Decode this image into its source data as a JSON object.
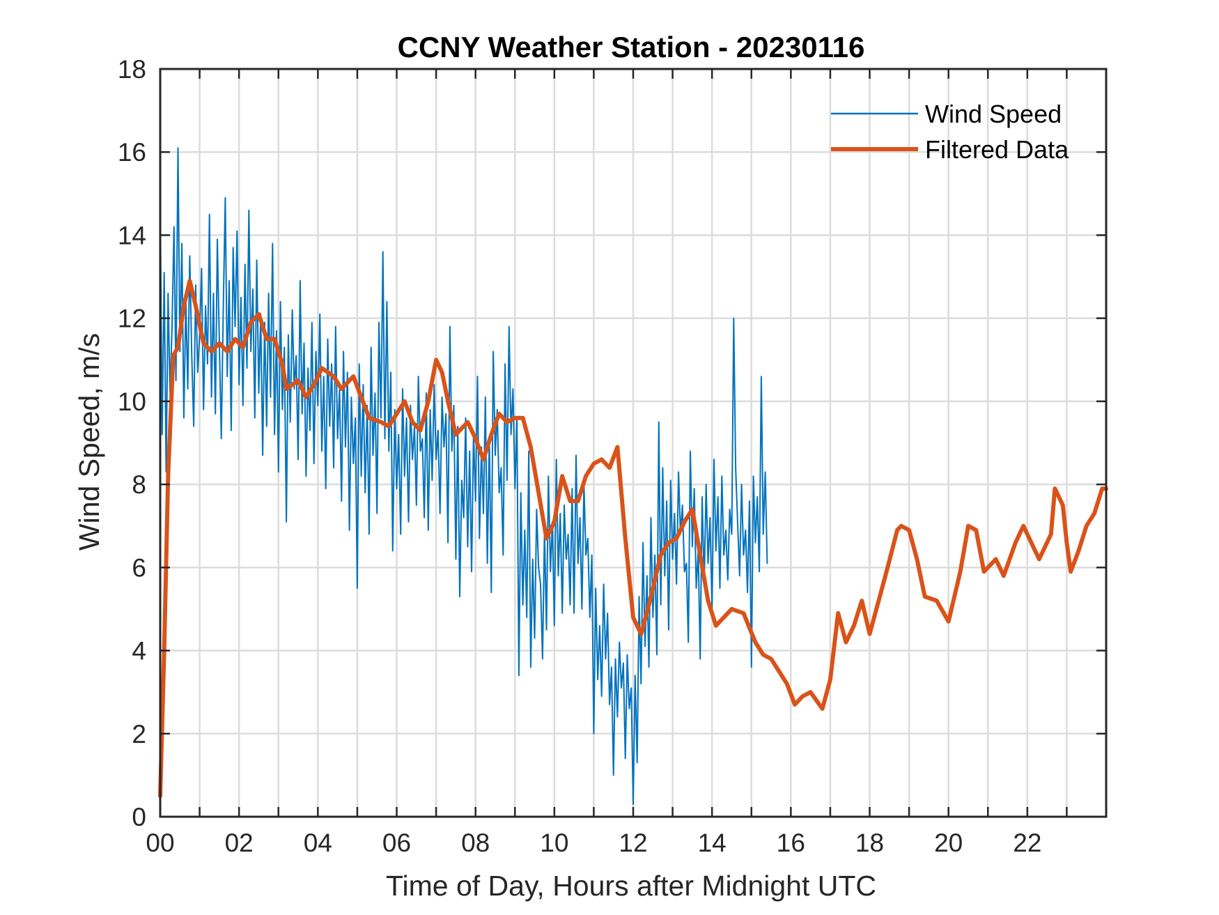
{
  "chart_data": {
    "type": "line",
    "title": "CCNY Weather Station - 20230116",
    "xlabel": "Time of Day, Hours after Midnight UTC",
    "ylabel": "Wind Speed, m/s",
    "xlim": [
      0,
      24
    ],
    "ylim": [
      0,
      18
    ],
    "grid": true,
    "x_minor_grid_step_hours": 1,
    "x_ticks": [
      0,
      2,
      4,
      6,
      8,
      10,
      12,
      14,
      16,
      18,
      20,
      22
    ],
    "x_tick_labels": [
      "00",
      "02",
      "04",
      "06",
      "08",
      "10",
      "12",
      "14",
      "16",
      "18",
      "20",
      "22"
    ],
    "y_ticks": [
      0,
      2,
      4,
      6,
      8,
      10,
      12,
      14,
      16,
      18
    ],
    "y_tick_labels": [
      "0",
      "2",
      "4",
      "6",
      "8",
      "10",
      "12",
      "14",
      "16",
      "18"
    ],
    "legend": {
      "position": "top-right",
      "entries": [
        "Wind Speed",
        "Filtered Data"
      ]
    },
    "series": [
      {
        "name": "Wind Speed",
        "color": "#0072BD",
        "x_step_hours": 0.05,
        "values": [
          14.8,
          9.2,
          13.1,
          8.3,
          12.6,
          10.2,
          11.8,
          14.2,
          10.5,
          16.1,
          11.2,
          13.8,
          9.6,
          12.4,
          10.3,
          13.5,
          11.1,
          9.4,
          12.8,
          10.7,
          11.6,
          13.2,
          9.8,
          12.3,
          10.9,
          14.5,
          10.1,
          12.6,
          9.7,
          13.9,
          11.4,
          9.1,
          12.2,
          14.9,
          10.6,
          12.9,
          9.3,
          13.7,
          11.8,
          14.1,
          10.4,
          12.5,
          9.9,
          13.3,
          10.8,
          14.6,
          11.2,
          12.7,
          9.6,
          13.4,
          10.2,
          12.1,
          8.7,
          11.9,
          9.4,
          12.6,
          10.1,
          13.8,
          9.2,
          11.7,
          8.3,
          12.4,
          9.8,
          11.3,
          7.1,
          11.6,
          9.5,
          12.2,
          10.3,
          11.1,
          8.6,
          12.9,
          9.7,
          11.4,
          8.2,
          10.8,
          9.3,
          11.9,
          8.5,
          11.2,
          9.9,
          12.1,
          8.8,
          10.6,
          7.9,
          11.5,
          9.4,
          10.9,
          8.4,
          11.8,
          9.1,
          10.3,
          7.6,
          11.2,
          8.9,
          10.7,
          6.9,
          10.1,
          8.5,
          9.6,
          5.5,
          10.9,
          8.2,
          10.4,
          7.8,
          9.9,
          6.8,
          11.3,
          8.7,
          10.2,
          7.3,
          11.9,
          9.6,
          13.6,
          9.1,
          12.4,
          8.8,
          10.7,
          6.4,
          9.8,
          7.9,
          9.2,
          6.8,
          10.3,
          8.2,
          9.6,
          7.1,
          9.9,
          8.6,
          9.4,
          7.5,
          10.6,
          8.8,
          9.1,
          7.2,
          10.2,
          6.9,
          9.8,
          8.1,
          10.4,
          8.6,
          9.3,
          7.3,
          10.1,
          8.9,
          9.7,
          6.6,
          11.8,
          8.8,
          9.9,
          6.2,
          9.4,
          5.3,
          8.1,
          7.2,
          9.6,
          6.5,
          8.8,
          5.9,
          9.2,
          7.6,
          10.6,
          6.7,
          8.9,
          7.3,
          10.1,
          6.1,
          9.1,
          5.4,
          11.2,
          8.7,
          9.8,
          7.8,
          8.4,
          6.3,
          10.9,
          8.1,
          11.8,
          9.2,
          10.3,
          7.9,
          9.6,
          3.4,
          7.8,
          5.1,
          6.9,
          4.8,
          8.8,
          3.6,
          6.2,
          4.3,
          7.4,
          6.0,
          5.6,
          3.8,
          6.9,
          4.5,
          8.2,
          5.9,
          7.1,
          4.6,
          8.6,
          5.8,
          7.3,
          4.9,
          7.5,
          6.2,
          6.8,
          5.1,
          7.9,
          4.9,
          8.7,
          6.1,
          7.2,
          5.0,
          8.0,
          6.3,
          6.7,
          4.8,
          6.3,
          2.0,
          5.5,
          3.3,
          4.6,
          2.9,
          5.6,
          3.8,
          4.9,
          2.7,
          3.6,
          1.0,
          3.8,
          2.4,
          4.2,
          3.1,
          3.7,
          1.4,
          3.9,
          2.6,
          3.1,
          0.3,
          3.4,
          1.3,
          5.3,
          3.2,
          6.6,
          4.1,
          5.8,
          3.6,
          7.2,
          4.8,
          6.3,
          3.9,
          9.5,
          5.1,
          8.4,
          5.8,
          7.6,
          4.5,
          8.1,
          6.2,
          7.3,
          5.6,
          8.3,
          6.8,
          7.5,
          5.9,
          6.1,
          4.2,
          8.8,
          6.5,
          7.9,
          5.5,
          6.4,
          3.8,
          7.7,
          5.6,
          8.0,
          6.1,
          7.2,
          5.0,
          8.6,
          6.4,
          7.7,
          5.5,
          8.2,
          6.3,
          6.9,
          5.7,
          7.4,
          6.8,
          12.0,
          8.4,
          7.1,
          5.8,
          8.0,
          6.3,
          6.9,
          5.4,
          7.6,
          3.6,
          8.2,
          6.6,
          7.7,
          5.9,
          10.6,
          6.8,
          8.3,
          6.1
        ]
      },
      {
        "name": "Filtered Data",
        "color": "#D95319",
        "points": [
          [
            0.0,
            0.5
          ],
          [
            0.1,
            4.0
          ],
          [
            0.2,
            8.2
          ],
          [
            0.33,
            11.1
          ],
          [
            0.45,
            11.3
          ],
          [
            0.6,
            12.3
          ],
          [
            0.75,
            12.9
          ],
          [
            0.9,
            12.3
          ],
          [
            1.1,
            11.4
          ],
          [
            1.3,
            11.2
          ],
          [
            1.5,
            11.4
          ],
          [
            1.7,
            11.2
          ],
          [
            1.9,
            11.5
          ],
          [
            2.1,
            11.3
          ],
          [
            2.3,
            11.9
          ],
          [
            2.5,
            12.1
          ],
          [
            2.7,
            11.5
          ],
          [
            2.9,
            11.5
          ],
          [
            3.1,
            10.9
          ],
          [
            3.2,
            10.3
          ],
          [
            3.5,
            10.5
          ],
          [
            3.7,
            10.1
          ],
          [
            3.9,
            10.4
          ],
          [
            4.1,
            10.8
          ],
          [
            4.4,
            10.6
          ],
          [
            4.6,
            10.3
          ],
          [
            4.9,
            10.6
          ],
          [
            5.1,
            10.1
          ],
          [
            5.3,
            9.6
          ],
          [
            5.6,
            9.5
          ],
          [
            5.8,
            9.4
          ],
          [
            6.0,
            9.7
          ],
          [
            6.2,
            10.0
          ],
          [
            6.4,
            9.5
          ],
          [
            6.6,
            9.3
          ],
          [
            6.8,
            10.0
          ],
          [
            7.0,
            11.0
          ],
          [
            7.15,
            10.7
          ],
          [
            7.3,
            10.0
          ],
          [
            7.5,
            9.2
          ],
          [
            7.8,
            9.5
          ],
          [
            8.0,
            9.1
          ],
          [
            8.2,
            8.6
          ],
          [
            8.4,
            9.2
          ],
          [
            8.6,
            9.7
          ],
          [
            8.8,
            9.5
          ],
          [
            9.0,
            9.6
          ],
          [
            9.2,
            9.6
          ],
          [
            9.4,
            8.9
          ],
          [
            9.6,
            7.8
          ],
          [
            9.8,
            6.7
          ],
          [
            10.0,
            7.1
          ],
          [
            10.2,
            8.2
          ],
          [
            10.4,
            7.6
          ],
          [
            10.6,
            7.6
          ],
          [
            10.8,
            8.2
          ],
          [
            11.0,
            8.5
          ],
          [
            11.2,
            8.6
          ],
          [
            11.4,
            8.4
          ],
          [
            11.6,
            8.9
          ],
          [
            11.8,
            6.7
          ],
          [
            12.0,
            4.8
          ],
          [
            12.2,
            4.4
          ],
          [
            12.4,
            5.1
          ],
          [
            12.7,
            6.3
          ],
          [
            12.9,
            6.6
          ],
          [
            13.1,
            6.7
          ],
          [
            13.3,
            7.1
          ],
          [
            13.5,
            7.4
          ],
          [
            13.7,
            6.3
          ],
          [
            13.9,
            5.2
          ],
          [
            14.1,
            4.6
          ],
          [
            14.3,
            4.8
          ],
          [
            14.5,
            5.0
          ],
          [
            14.8,
            4.9
          ],
          [
            15.1,
            4.2
          ],
          [
            15.3,
            3.9
          ],
          [
            15.5,
            3.8
          ],
          [
            15.7,
            3.5
          ],
          [
            15.9,
            3.2
          ],
          [
            16.1,
            2.7
          ],
          [
            16.3,
            2.9
          ],
          [
            16.5,
            3.0
          ],
          [
            16.8,
            2.6
          ],
          [
            17.0,
            3.3
          ],
          [
            17.2,
            4.9
          ],
          [
            17.4,
            4.2
          ],
          [
            17.6,
            4.6
          ],
          [
            17.8,
            5.2
          ],
          [
            18.0,
            4.4
          ],
          [
            18.2,
            5.1
          ],
          [
            18.4,
            5.8
          ],
          [
            18.7,
            6.9
          ],
          [
            18.8,
            7.0
          ],
          [
            19.0,
            6.9
          ],
          [
            19.2,
            6.2
          ],
          [
            19.4,
            5.3
          ],
          [
            19.7,
            5.2
          ],
          [
            20.0,
            4.7
          ],
          [
            20.3,
            5.9
          ],
          [
            20.5,
            7.0
          ],
          [
            20.7,
            6.9
          ],
          [
            20.9,
            5.9
          ],
          [
            21.2,
            6.2
          ],
          [
            21.4,
            5.8
          ],
          [
            21.7,
            6.6
          ],
          [
            21.9,
            7.0
          ],
          [
            22.1,
            6.6
          ],
          [
            22.3,
            6.2
          ],
          [
            22.5,
            6.6
          ],
          [
            22.6,
            6.8
          ],
          [
            22.7,
            7.9
          ],
          [
            22.9,
            7.5
          ],
          [
            23.0,
            6.6
          ],
          [
            23.1,
            5.9
          ],
          [
            23.3,
            6.4
          ],
          [
            23.5,
            7.0
          ],
          [
            23.7,
            7.3
          ],
          [
            23.9,
            7.9
          ],
          [
            24.0,
            7.9
          ]
        ]
      }
    ]
  },
  "colors": {
    "grid": "#DCDCDC",
    "axis": "#262626"
  }
}
